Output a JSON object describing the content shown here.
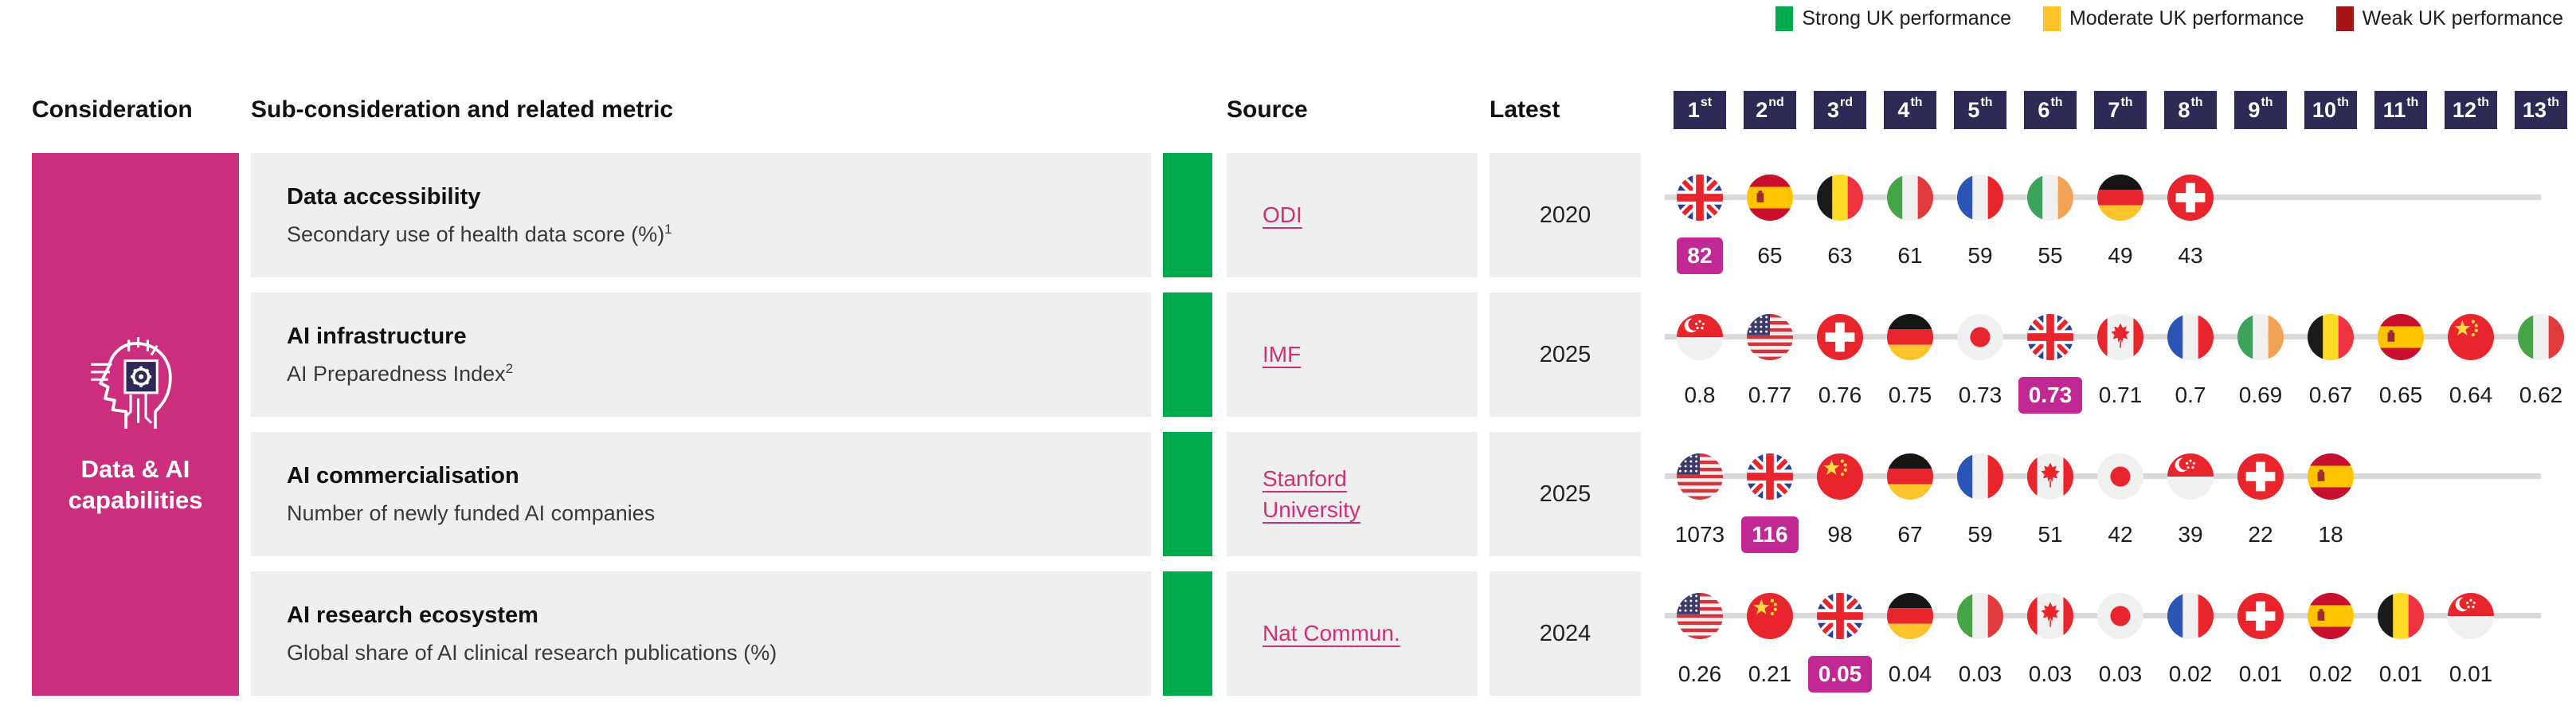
{
  "legend": {
    "items": [
      {
        "label": "Strong UK performance",
        "color": "#00ab4e"
      },
      {
        "label": "Moderate UK performance",
        "color": "#fdc32b"
      },
      {
        "label": "Weak UK performance",
        "color": "#a61414"
      }
    ]
  },
  "headers": {
    "consideration": "Consideration",
    "metric": "Sub-consideration and related metric",
    "source": "Source",
    "latest": "Latest"
  },
  "ranks": [
    {
      "label": "1",
      "suffix": "st"
    },
    {
      "label": "2",
      "suffix": "nd"
    },
    {
      "label": "3",
      "suffix": "rd"
    },
    {
      "label": "4",
      "suffix": "th"
    },
    {
      "label": "5",
      "suffix": "th"
    },
    {
      "label": "6",
      "suffix": "th"
    },
    {
      "label": "7",
      "suffix": "th"
    },
    {
      "label": "8",
      "suffix": "th"
    },
    {
      "label": "9",
      "suffix": "th"
    },
    {
      "label": "10",
      "suffix": "th"
    },
    {
      "label": "11",
      "suffix": "th"
    },
    {
      "label": "12",
      "suffix": "th"
    },
    {
      "label": "13",
      "suffix": "th"
    }
  ],
  "consideration": {
    "label": "Data & AI capabilities",
    "icon": "ai-head-icon"
  },
  "rows": [
    {
      "title": "Data accessibility",
      "metric": "Secondary use of health data score (%)",
      "metric_superscript": "1",
      "performance": "strong",
      "source": "ODI",
      "latest": "2020",
      "entries": [
        {
          "country": "uk",
          "flag": "flag-uk-icon",
          "value": "82",
          "highlight": true
        },
        {
          "country": "spain",
          "flag": "flag-spain-icon",
          "value": "65"
        },
        {
          "country": "belgium",
          "flag": "flag-belgium-icon",
          "value": "63"
        },
        {
          "country": "italy",
          "flag": "flag-italy-icon",
          "value": "61"
        },
        {
          "country": "france",
          "flag": "flag-france-icon",
          "value": "59"
        },
        {
          "country": "ireland",
          "flag": "flag-ireland-icon",
          "value": "55"
        },
        {
          "country": "germany",
          "flag": "flag-germany-icon",
          "value": "49"
        },
        {
          "country": "switzerland",
          "flag": "flag-switzerland-icon",
          "value": "43"
        }
      ]
    },
    {
      "title": "AI infrastructure",
      "metric": "AI Preparedness Index",
      "metric_superscript": "2",
      "performance": "strong",
      "source": "IMF",
      "latest": "2025",
      "entries": [
        {
          "country": "singapore",
          "flag": "flag-singapore-icon",
          "value": "0.8"
        },
        {
          "country": "usa",
          "flag": "flag-usa-icon",
          "value": "0.77"
        },
        {
          "country": "switzerland",
          "flag": "flag-switzerland-icon",
          "value": "0.76"
        },
        {
          "country": "germany",
          "flag": "flag-germany-icon",
          "value": "0.75"
        },
        {
          "country": "japan",
          "flag": "flag-japan-icon",
          "value": "0.73"
        },
        {
          "country": "uk",
          "flag": "flag-uk-icon",
          "value": "0.73",
          "highlight": true
        },
        {
          "country": "canada",
          "flag": "flag-canada-icon",
          "value": "0.71"
        },
        {
          "country": "france",
          "flag": "flag-france-icon",
          "value": "0.7"
        },
        {
          "country": "ireland",
          "flag": "flag-ireland-icon",
          "value": "0.69"
        },
        {
          "country": "belgium",
          "flag": "flag-belgium-icon",
          "value": "0.67"
        },
        {
          "country": "spain",
          "flag": "flag-spain-icon",
          "value": "0.65"
        },
        {
          "country": "china",
          "flag": "flag-china-icon",
          "value": "0.64"
        },
        {
          "country": "italy",
          "flag": "flag-italy-icon",
          "value": "0.62"
        }
      ]
    },
    {
      "title": "AI commercialisation",
      "metric": "Number of newly funded AI companies",
      "metric_superscript": "",
      "performance": "strong",
      "source": "Stanford University",
      "latest": "2025",
      "entries": [
        {
          "country": "usa",
          "flag": "flag-usa-icon",
          "value": "1073"
        },
        {
          "country": "uk",
          "flag": "flag-uk-icon",
          "value": "116",
          "highlight": true
        },
        {
          "country": "china",
          "flag": "flag-china-icon",
          "value": "98"
        },
        {
          "country": "germany",
          "flag": "flag-germany-icon",
          "value": "67"
        },
        {
          "country": "france",
          "flag": "flag-france-icon",
          "value": "59"
        },
        {
          "country": "canada",
          "flag": "flag-canada-icon",
          "value": "51"
        },
        {
          "country": "japan",
          "flag": "flag-japan-icon",
          "value": "42"
        },
        {
          "country": "singapore",
          "flag": "flag-singapore-icon",
          "value": "39"
        },
        {
          "country": "switzerland",
          "flag": "flag-switzerland-icon",
          "value": "22"
        },
        {
          "country": "spain",
          "flag": "flag-spain-icon",
          "value": "18"
        }
      ]
    },
    {
      "title": "AI research ecosystem",
      "metric": "Global share of AI clinical research publications (%)",
      "metric_superscript": "",
      "performance": "strong",
      "source": "Nat Commun.",
      "latest": "2024",
      "entries": [
        {
          "country": "usa",
          "flag": "flag-usa-icon",
          "value": "0.26"
        },
        {
          "country": "china",
          "flag": "flag-china-icon",
          "value": "0.21"
        },
        {
          "country": "uk",
          "flag": "flag-uk-icon",
          "value": "0.05",
          "highlight": true
        },
        {
          "country": "germany",
          "flag": "flag-germany-icon",
          "value": "0.04"
        },
        {
          "country": "italy",
          "flag": "flag-italy-icon",
          "value": "0.03"
        },
        {
          "country": "canada",
          "flag": "flag-canada-icon",
          "value": "0.03"
        },
        {
          "country": "japan",
          "flag": "flag-japan-icon",
          "value": "0.03"
        },
        {
          "country": "france",
          "flag": "flag-france-icon",
          "value": "0.02"
        },
        {
          "country": "switzerland",
          "flag": "flag-switzerland-icon",
          "value": "0.01"
        },
        {
          "country": "spain",
          "flag": "flag-spain-icon",
          "value": "0.02"
        },
        {
          "country": "belgium",
          "flag": "flag-belgium-icon",
          "value": "0.01"
        },
        {
          "country": "singapore",
          "flag": "flag-singapore-icon",
          "value": "0.01"
        }
      ]
    }
  ],
  "colors": {
    "accent_pink": "#cb2e7d",
    "highlight_badge": "#c02994",
    "rank_badge": "#2e2a56",
    "strong": "#00ab4e",
    "moderate": "#fdc32b",
    "weak": "#a61414",
    "row_background": "#f0efef",
    "rank_line": "#d9d9d9",
    "link": "#cf3079"
  }
}
